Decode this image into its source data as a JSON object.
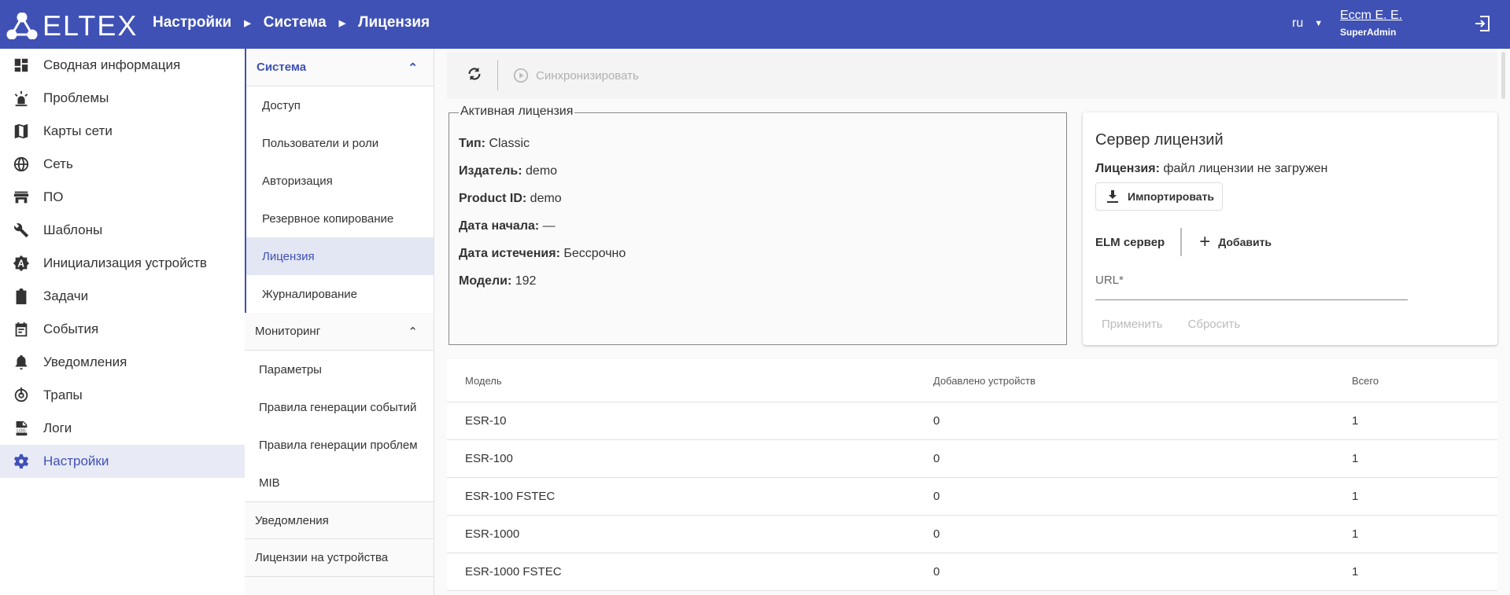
{
  "header": {
    "logo": "ELTEX",
    "breadcrumb": [
      "Настройки",
      "Система",
      "Лицензия"
    ],
    "lang": "ru",
    "user_name": "Еccm Е. Е.",
    "user_role": "SuperAdmin",
    "accent": "#3f51b5"
  },
  "sidebar": {
    "items": [
      {
        "label": "Сводная информация",
        "icon": "dashboard-icon"
      },
      {
        "label": "Проблемы",
        "icon": "alarm-light-icon"
      },
      {
        "label": "Карты сети",
        "icon": "map-icon"
      },
      {
        "label": "Сеть",
        "icon": "globe-icon"
      },
      {
        "label": "ПО",
        "icon": "store-icon"
      },
      {
        "label": "Шаблоны",
        "icon": "wrench-icon"
      },
      {
        "label": "Инициализация устройств",
        "icon": "auto-badge-icon"
      },
      {
        "label": "Задачи",
        "icon": "clipboard-icon"
      },
      {
        "label": "События",
        "icon": "calendar-icon"
      },
      {
        "label": "Уведомления",
        "icon": "bell-icon"
      },
      {
        "label": "Трапы",
        "icon": "trap-icon"
      },
      {
        "label": "Логи",
        "icon": "log-file-icon"
      },
      {
        "label": "Настройки",
        "icon": "gear-icon",
        "active": true
      }
    ]
  },
  "subnav": {
    "system": {
      "label": "Система",
      "items": [
        "Доступ",
        "Пользователи и роли",
        "Авторизация",
        "Резервное копирование",
        "Лицензия",
        "Журналирование"
      ]
    },
    "monitoring": {
      "label": "Мониторинг",
      "items": [
        "Параметры",
        "Правила генерации событий",
        "Правила генерации проблем",
        "MIB"
      ]
    },
    "notifications": "Уведомления",
    "device_licenses": "Лицензии на устройства"
  },
  "toolbar": {
    "sync_label": "Синхронизировать"
  },
  "active_license": {
    "title": "Активная лицензия",
    "rows": [
      {
        "k": "Тип:",
        "v": " Classic"
      },
      {
        "k": "Издатель:",
        "v": " demo"
      },
      {
        "k": "Product ID:",
        "v": " demo"
      },
      {
        "k": "Дата начала:",
        "v": " —"
      },
      {
        "k": "Дата истечения:",
        "v": " Бессрочно"
      },
      {
        "k": "Модели:",
        "v": " 192"
      }
    ]
  },
  "license_server": {
    "title": "Сервер лицензий",
    "license_key": "Лицензия:",
    "license_value": " файл лицензии не загружен",
    "import": "Импортировать",
    "elm": "ELM сервер",
    "add": "Добавить",
    "url_placeholder": "URL*",
    "apply": "Применить",
    "reset": "Сбросить"
  },
  "table": {
    "columns": [
      "Модель",
      "Добавлено устройств",
      "Всего"
    ],
    "rows": [
      [
        "ESR-10",
        "0",
        "1"
      ],
      [
        "ESR-100",
        "0",
        "1"
      ],
      [
        "ESR-100 FSTEC",
        "0",
        "1"
      ],
      [
        "ESR-1000",
        "0",
        "1"
      ],
      [
        "ESR-1000 FSTEC",
        "0",
        "1"
      ]
    ]
  }
}
